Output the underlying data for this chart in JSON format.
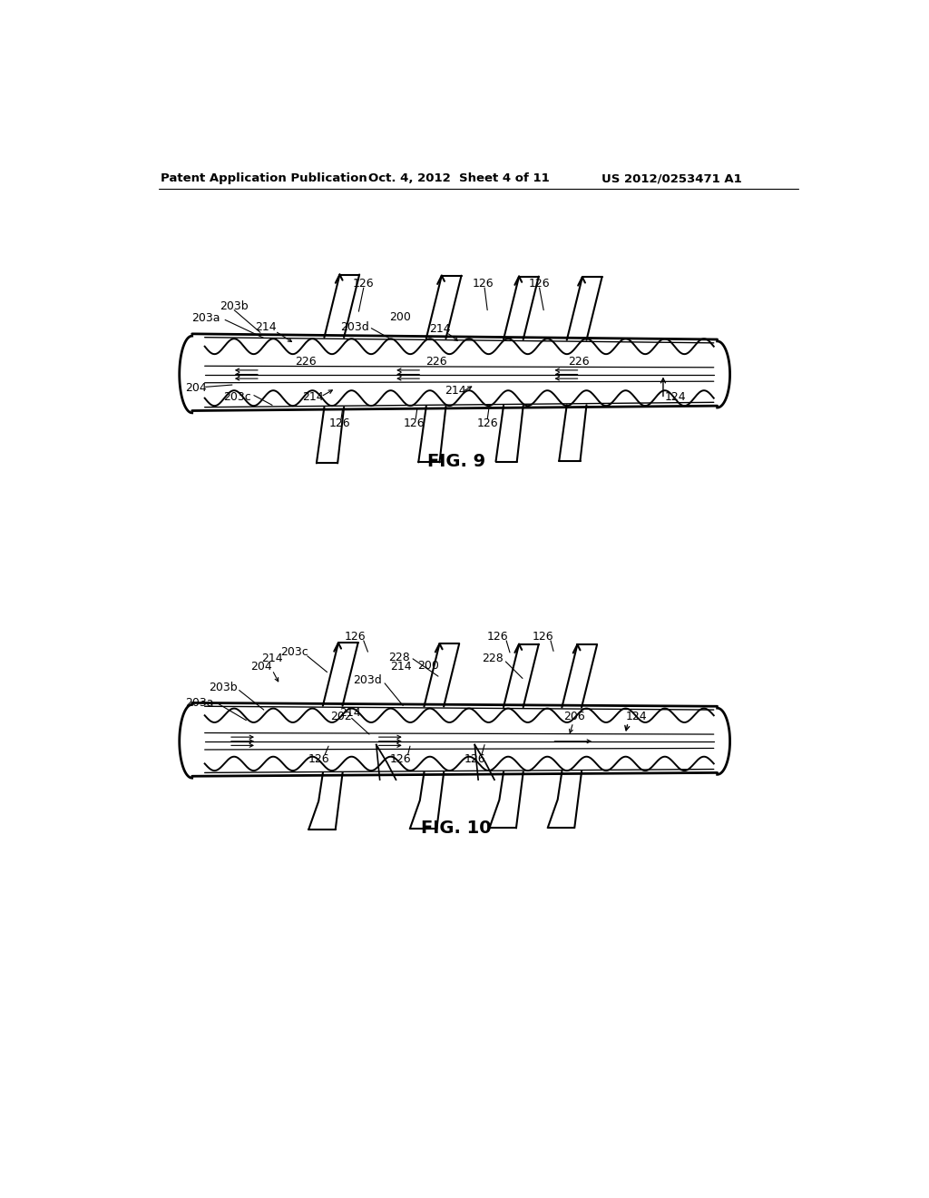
{
  "header_left": "Patent Application Publication",
  "header_mid": "Oct. 4, 2012  Sheet 4 of 11",
  "header_right": "US 2012/0253471 A1",
  "fig9_caption": "FIG. 9",
  "fig10_caption": "FIG. 10",
  "bg_color": "#ffffff"
}
